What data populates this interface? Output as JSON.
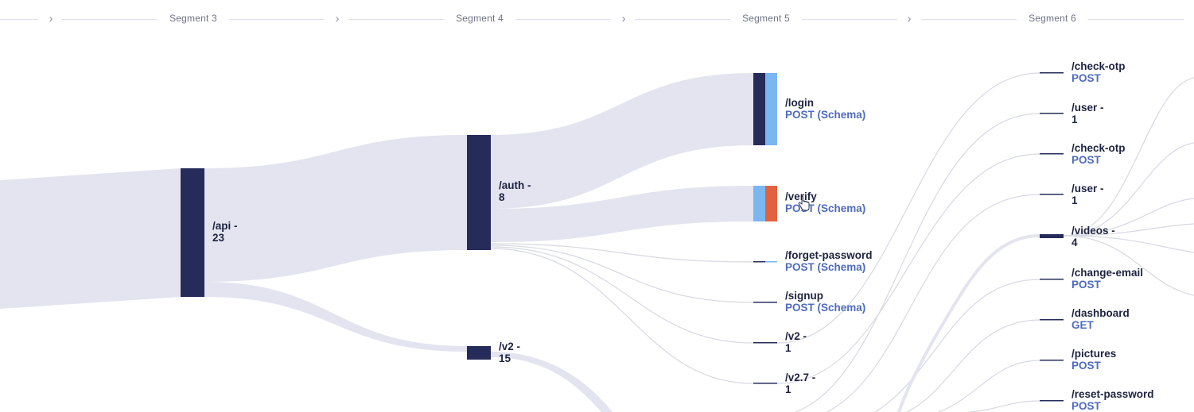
{
  "header": {
    "segments": [
      "Segment 3",
      "Segment 4",
      "Segment 5",
      "Segment 6"
    ],
    "chevron_icon": "chevron-right-icon"
  },
  "colors": {
    "node_dark": "#262c59",
    "flow_fill": "#e3e4ef",
    "thin_link": "#d7d9e3",
    "accent_light_blue": "#7ab6f0",
    "accent_orange": "#e2623f",
    "method_text": "#4f6bbd"
  },
  "nodes": {
    "api": {
      "name": "/api -",
      "count": "23"
    },
    "auth": {
      "name": "/auth -",
      "count": "8"
    },
    "v2_seg4": {
      "name": "/v2 -",
      "count": "15"
    },
    "login": {
      "name": "/login",
      "method": "POST (Schema)"
    },
    "verify": {
      "name": "/verify",
      "method": "POST (Schema)"
    },
    "forget": {
      "name": "/forget-password",
      "method": "POST (Schema)"
    },
    "signup": {
      "name": "/signup",
      "method": "POST (Schema)"
    },
    "v2_seg5": {
      "name": "/v2 -",
      "count": "1"
    },
    "v27": {
      "name": "/v2.7 -",
      "count": "1"
    },
    "check_otp_1": {
      "name": "/check-otp",
      "method": "POST"
    },
    "user_1": {
      "name": "/user -",
      "count": "1"
    },
    "check_otp_2": {
      "name": "/check-otp",
      "method": "POST"
    },
    "user_2": {
      "name": "/user -",
      "count": "1"
    },
    "videos": {
      "name": "/videos -",
      "count": "4"
    },
    "change_email": {
      "name": "/change-email",
      "method": "POST"
    },
    "dashboard": {
      "name": "/dashboard",
      "method": "GET"
    },
    "pictures": {
      "name": "/pictures",
      "method": "POST"
    },
    "reset_password": {
      "name": "/reset-password",
      "method": "POST"
    }
  }
}
